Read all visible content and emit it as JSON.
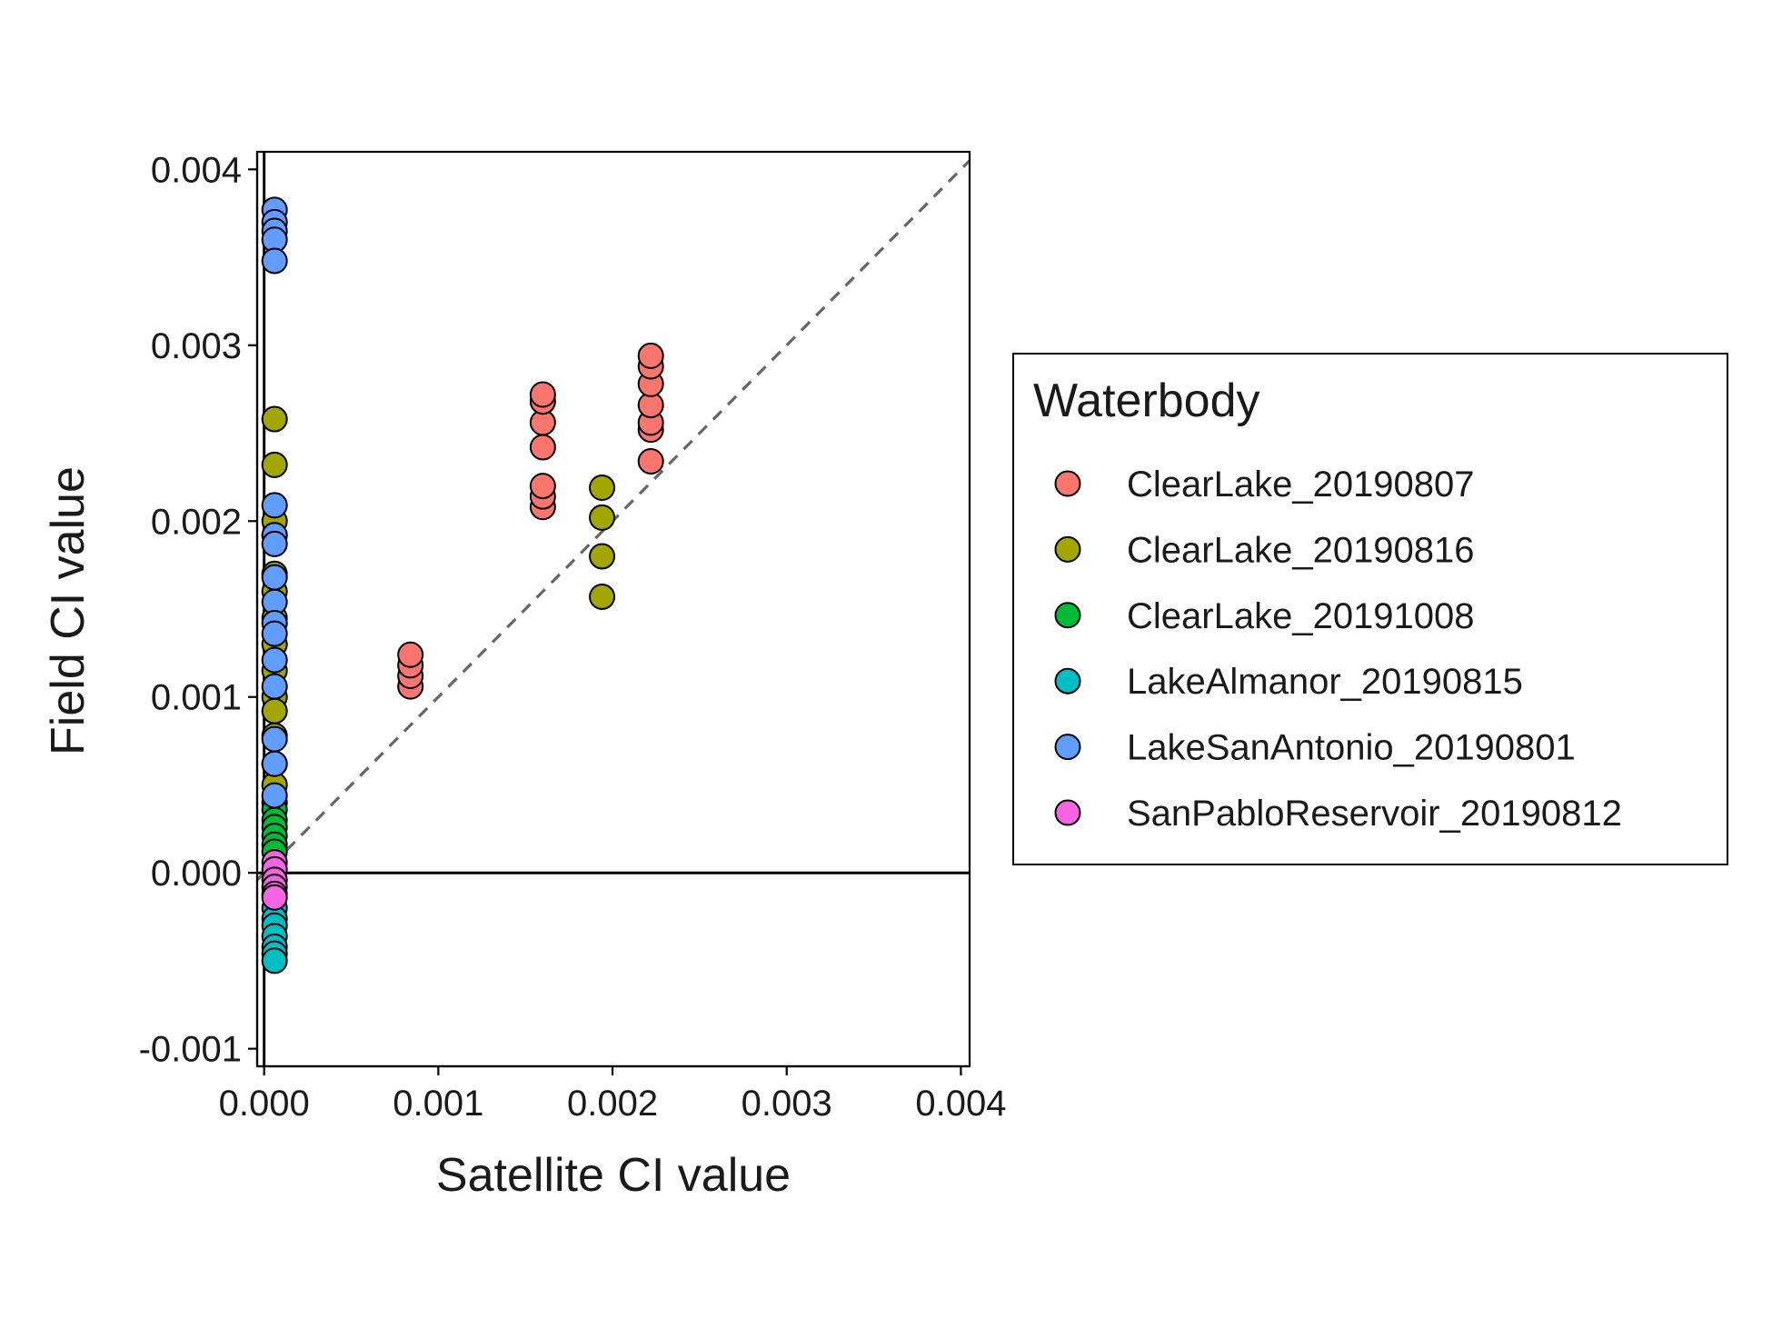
{
  "chart_data": {
    "type": "scatter",
    "xlabel": "Satellite CI value",
    "ylabel": "Field CI value",
    "xlim": [
      -4e-05,
      0.00405
    ],
    "ylim": [
      -0.0011,
      0.0041
    ],
    "x_ticks": [
      0.0,
      0.001,
      0.002,
      0.003,
      0.004
    ],
    "x_tick_labels": [
      "0.000",
      "0.001",
      "0.002",
      "0.003",
      "0.004"
    ],
    "y_ticks": [
      -0.001,
      0.0,
      0.001,
      0.002,
      0.003,
      0.004
    ],
    "y_tick_labels": [
      "-0.001",
      "0.000",
      "0.001",
      "0.002",
      "0.003",
      "0.004"
    ],
    "reference_lines": [
      {
        "type": "identity",
        "style": "dashed",
        "color": "#666666"
      },
      {
        "type": "hline",
        "y": 0,
        "style": "solid",
        "color": "#000000"
      },
      {
        "type": "vline",
        "x": 0,
        "style": "solid",
        "color": "#000000"
      }
    ],
    "legend": {
      "title": "Waterbody",
      "position": "right"
    },
    "series": [
      {
        "name": "ClearLake_20190807",
        "color": "#F8766D",
        "points": [
          [
            0.00084,
            0.00106
          ],
          [
            0.00084,
            0.00112
          ],
          [
            0.00084,
            0.00118
          ],
          [
            0.00084,
            0.00124
          ],
          [
            0.0016,
            0.00208
          ],
          [
            0.0016,
            0.00214
          ],
          [
            0.0016,
            0.0022
          ],
          [
            0.0016,
            0.00242
          ],
          [
            0.0016,
            0.00256
          ],
          [
            0.0016,
            0.00268
          ],
          [
            0.0016,
            0.00272
          ],
          [
            0.00222,
            0.00234
          ],
          [
            0.00222,
            0.00252
          ],
          [
            0.00222,
            0.00256
          ],
          [
            0.00222,
            0.00266
          ],
          [
            0.00222,
            0.00278
          ],
          [
            0.00222,
            0.00288
          ],
          [
            0.00222,
            0.00294
          ]
        ]
      },
      {
        "name": "ClearLake_20190816",
        "color": "#A3A500",
        "points": [
          [
            0.00194,
            0.00157
          ],
          [
            0.00194,
            0.0018
          ],
          [
            0.00194,
            0.00202
          ],
          [
            0.00194,
            0.00219
          ],
          [
            6e-05,
            0.00258
          ],
          [
            6e-05,
            0.00232
          ],
          [
            6e-05,
            0.002
          ],
          [
            6e-05,
            0.00192
          ],
          [
            6e-05,
            0.0017
          ],
          [
            6e-05,
            0.0016
          ],
          [
            6e-05,
            0.00145
          ],
          [
            6e-05,
            0.0013
          ],
          [
            6e-05,
            0.00115
          ],
          [
            6e-05,
            0.001
          ],
          [
            6e-05,
            0.00092
          ],
          [
            6e-05,
            0.00078
          ],
          [
            6e-05,
            0.00062
          ],
          [
            6e-05,
            0.0005
          ],
          [
            6e-05,
            0.0004
          ]
        ]
      },
      {
        "name": "ClearLake_20191008",
        "color": "#00BA38",
        "points": [
          [
            6e-05,
            0.00036
          ],
          [
            6e-05,
            0.0003
          ],
          [
            6e-05,
            0.00026
          ],
          [
            6e-05,
            0.00021
          ],
          [
            6e-05,
            0.00016
          ],
          [
            6e-05,
            0.00012
          ]
        ]
      },
      {
        "name": "LakeAlmanor_20190815",
        "color": "#00BFC4",
        "points": [
          [
            6e-05,
            -0.0002
          ],
          [
            6e-05,
            -0.00026
          ],
          [
            6e-05,
            -0.0003
          ],
          [
            6e-05,
            -0.00036
          ],
          [
            6e-05,
            -0.00042
          ],
          [
            6e-05,
            -0.00046
          ],
          [
            6e-05,
            -0.0005
          ]
        ]
      },
      {
        "name": "LakeSanAntonio_20190801",
        "color": "#619CFF",
        "points": [
          [
            6e-05,
            0.00377
          ],
          [
            6e-05,
            0.0037
          ],
          [
            6e-05,
            0.00365
          ],
          [
            6e-05,
            0.0036
          ],
          [
            6e-05,
            0.00348
          ],
          [
            6e-05,
            0.00209
          ],
          [
            6e-05,
            0.00192
          ],
          [
            6e-05,
            0.00187
          ],
          [
            6e-05,
            0.00168
          ],
          [
            6e-05,
            0.00154
          ],
          [
            6e-05,
            0.00142
          ],
          [
            6e-05,
            0.00136
          ],
          [
            6e-05,
            0.00121
          ],
          [
            6e-05,
            0.00106
          ],
          [
            6e-05,
            0.00076
          ],
          [
            6e-05,
            0.00062
          ],
          [
            6e-05,
            0.00044
          ]
        ]
      },
      {
        "name": "SanPabloReservoir_20190812",
        "color": "#F564E3",
        "points": [
          [
            6e-05,
            6e-05
          ],
          [
            6e-05,
            2e-05
          ],
          [
            6e-05,
            -4e-05
          ],
          [
            6e-05,
            -8e-05
          ],
          [
            6e-05,
            -0.00012
          ],
          [
            6e-05,
            -0.00014
          ]
        ]
      }
    ]
  }
}
